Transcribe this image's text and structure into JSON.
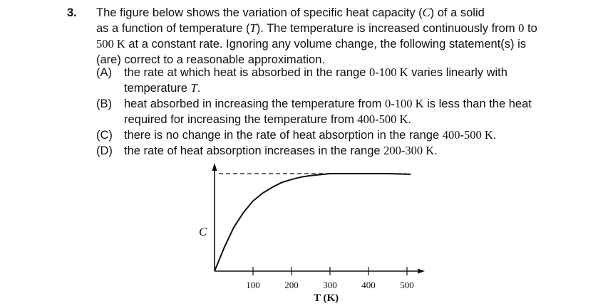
{
  "question": {
    "number": "3.",
    "stem_lines": [
      [
        "The figure below shows the variation of specific heat capacity (",
        "C",
        ") of a solid"
      ],
      [
        "as a function of temperature (",
        "T",
        "). The temperature is increased continuously from ",
        "0",
        " to"
      ],
      [
        "500 K",
        " at a constant rate.  Ignoring any volume change, the following statement(s) is"
      ],
      [
        "(are) correct to a reasonable approximation."
      ]
    ],
    "options": [
      {
        "label": "(A)",
        "lines": [
          [
            "the rate at which heat is absorbed in the range ",
            "0-100 K",
            " varies linearly with"
          ],
          [
            "temperature ",
            "T",
            "."
          ]
        ]
      },
      {
        "label": "(B)",
        "lines": [
          [
            "heat absorbed in increasing the temperature from ",
            "0-100 K",
            " is less than the heat"
          ],
          [
            "required for increasing the temperature from ",
            "400-500 K",
            "."
          ]
        ]
      },
      {
        "label": "(C)",
        "lines": [
          [
            "there is no change in the rate of heat absorption in the range ",
            "400-500 K",
            "."
          ]
        ]
      },
      {
        "label": "(D)",
        "lines": [
          [
            "the rate of heat absorption increases in the range ",
            "200-300 K",
            "."
          ]
        ]
      }
    ]
  },
  "chart_data": {
    "type": "line",
    "ylabel": "C",
    "xlabel": "T (K)",
    "xticks": [
      100,
      200,
      300,
      400,
      500
    ],
    "xlim": [
      0,
      530
    ],
    "ylim": [
      0,
      1.15
    ],
    "series": [
      {
        "x": [
          0,
          25,
          50,
          75,
          100,
          125,
          150,
          175,
          200,
          225,
          250,
          275,
          300,
          350,
          400,
          450,
          500
        ],
        "y": [
          0,
          0.24,
          0.45,
          0.6,
          0.72,
          0.8,
          0.86,
          0.91,
          0.94,
          0.965,
          0.98,
          0.99,
          1.0,
          1.0,
          1.0,
          1.0,
          0.995
        ]
      }
    ],
    "asymptote_y": 1.0
  }
}
